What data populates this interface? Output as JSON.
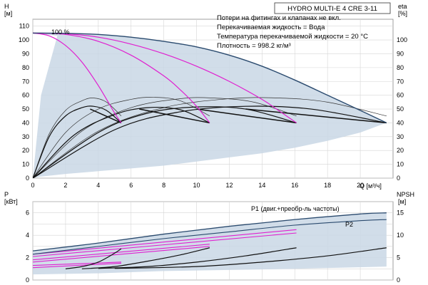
{
  "chart_data": [
    {
      "type": "line",
      "title": "HYDRO MULTI-E 4 CRE 3-11",
      "notes": [
        "Потери на фитингах и клапанах не вкл.",
        "Перекачиваемая жидкость = Вода",
        "Температура перекачиваемой жидкости = 20 °C",
        "Плотность = 998.2 кг/м³"
      ],
      "x_axis": {
        "label": "Q [м³/ч]",
        "range": [
          0,
          22
        ],
        "ticks": [
          "0",
          "2",
          "4",
          "6",
          "8",
          "10",
          "12",
          "14",
          "16",
          "18",
          "20"
        ]
      },
      "y_axis_left": {
        "label_line1": "H",
        "label_line2": "[м]",
        "range": [
          0,
          115
        ],
        "ticks": [
          "0",
          "10",
          "20",
          "30",
          "40",
          "50",
          "60",
          "70",
          "80",
          "90",
          "100",
          "110"
        ]
      },
      "y_axis_right": {
        "label_line1": "eta",
        "label_line2": "[%]",
        "range": [
          0,
          115
        ],
        "ticks": [
          "0",
          "10",
          "20",
          "30",
          "40",
          "50",
          "60",
          "70",
          "80",
          "90",
          "100"
        ]
      },
      "annotation": "100 %",
      "grid": true,
      "head_series": [
        {
          "x": [
            0,
            1,
            2,
            3,
            4,
            5,
            5.4
          ],
          "y": [
            105,
            103,
            96,
            84,
            67,
            47,
            40
          ]
        },
        {
          "x": [
            0,
            2,
            4,
            6,
            8,
            9,
            10,
            10.8
          ],
          "y": [
            105,
            104,
            99,
            89,
            74,
            64,
            52,
            40
          ]
        },
        {
          "x": [
            0,
            2,
            4,
            6,
            8,
            10,
            12,
            14,
            15,
            16.1
          ],
          "y": [
            105,
            104.5,
            102,
            97,
            90,
            81,
            70,
            57,
            49,
            40
          ]
        },
        {
          "x": [
            0,
            2,
            4,
            6,
            8,
            10,
            12,
            14,
            16,
            18,
            20,
            21.6
          ],
          "y": [
            105,
            104.8,
            104,
            102,
            99,
            95,
            89,
            81,
            71,
            60,
            49,
            40
          ]
        }
      ],
      "efficiency_series": [
        {
          "x": [
            0,
            1,
            2,
            3,
            3.7,
            4.5,
            5.4
          ],
          "y": [
            0,
            32,
            49,
            56,
            58,
            55,
            45
          ]
        },
        {
          "x": [
            0,
            2,
            4,
            6,
            7.4,
            9,
            10.8
          ],
          "y": [
            0,
            33,
            50,
            57,
            58.5,
            56,
            45
          ]
        },
        {
          "x": [
            0,
            3,
            6,
            9,
            11,
            13.5,
            16.1
          ],
          "y": [
            0,
            34,
            51,
            57.5,
            58,
            55,
            45
          ]
        },
        {
          "x": [
            0,
            4,
            8,
            12,
            15,
            18,
            21.6
          ],
          "y": [
            0,
            34,
            51,
            57.5,
            58,
            55,
            45
          ]
        }
      ],
      "system_series": [
        {
          "x": [
            0,
            1,
            2,
            3,
            3.7,
            4.5,
            5.4
          ],
          "y": [
            0,
            30,
            45,
            51,
            52,
            49,
            40
          ]
        },
        {
          "x": [
            0,
            2.5,
            5,
            7,
            9,
            10.8
          ],
          "y": [
            0,
            31,
            46,
            51,
            49.5,
            40
          ]
        },
        {
          "x": [
            0,
            4,
            7,
            10,
            13,
            16.1
          ],
          "y": [
            0,
            33,
            47,
            51.5,
            50,
            40
          ]
        },
        {
          "x": [
            0,
            5,
            9,
            13,
            17,
            21.6
          ],
          "y": [
            0,
            35,
            48,
            52,
            50,
            40
          ]
        }
      ],
      "pairs": [
        {
          "x": [
            3.5,
            5.4
          ],
          "y": [
            50,
            40
          ]
        },
        {
          "x": [
            6.5,
            10.8
          ],
          "y": [
            50,
            40
          ]
        },
        {
          "x": [
            10,
            16.1
          ],
          "y": [
            50,
            40
          ]
        },
        {
          "x": [
            13,
            21.6
          ],
          "y": [
            50,
            40
          ]
        }
      ]
    },
    {
      "type": "line",
      "x_axis": {
        "range": [
          0,
          22
        ]
      },
      "y_axis_left": {
        "label_line1": "P",
        "label_line2": "[кВт]",
        "range": [
          0,
          7
        ],
        "ticks": [
          "0",
          "2",
          "4",
          "6"
        ]
      },
      "y_axis_right": {
        "label_line1": "NPSH",
        "label_line2": "[м]",
        "range": [
          0,
          17.5
        ],
        "ticks": [
          "0",
          "5",
          "10",
          "15"
        ]
      },
      "labels": {
        "p1": "P1 (двиг.+преобр-ль частоты)",
        "p2": "P2"
      },
      "grid": true,
      "p1_envelope": {
        "x": [
          0,
          4,
          8,
          12,
          16,
          20,
          21.6
        ],
        "y": [
          2.6,
          3.3,
          4.1,
          4.8,
          5.4,
          5.9,
          6.0
        ]
      },
      "p2_envelope": {
        "x": [
          0,
          4,
          8,
          12,
          16,
          20,
          21.6
        ],
        "y": [
          2.3,
          3.0,
          3.7,
          4.3,
          4.9,
          5.3,
          5.4
        ]
      },
      "magenta_power": [
        {
          "x": [
            0,
            5.4
          ],
          "y": [
            1.1,
            1.5
          ]
        },
        {
          "x": [
            0,
            5.4
          ],
          "y": [
            1.3,
            1.6
          ]
        },
        {
          "x": [
            0,
            10.8
          ],
          "y": [
            1.6,
            3.0
          ]
        },
        {
          "x": [
            0,
            10.8
          ],
          "y": [
            1.8,
            3.2
          ]
        },
        {
          "x": [
            0,
            16.1
          ],
          "y": [
            2.1,
            4.2
          ]
        },
        {
          "x": [
            0,
            16.1
          ],
          "y": [
            2.3,
            4.5
          ]
        }
      ],
      "npsh_series": [
        {
          "x": [
            2,
            3,
            4,
            5,
            5.4
          ],
          "y": [
            2.5,
            3.0,
            4.0,
            6.0,
            7.0
          ]
        },
        {
          "x": [
            3,
            5,
            7,
            9,
            10.8
          ],
          "y": [
            2.5,
            3.0,
            4.2,
            5.6,
            7.2
          ]
        },
        {
          "x": [
            4,
            7,
            10,
            13,
            16.1
          ],
          "y": [
            2.6,
            3.0,
            4.0,
            5.4,
            7.2
          ]
        },
        {
          "x": [
            5,
            10,
            14,
            18,
            21.6
          ],
          "y": [
            2.6,
            3.0,
            4.0,
            5.4,
            7.2
          ]
        }
      ]
    }
  ]
}
